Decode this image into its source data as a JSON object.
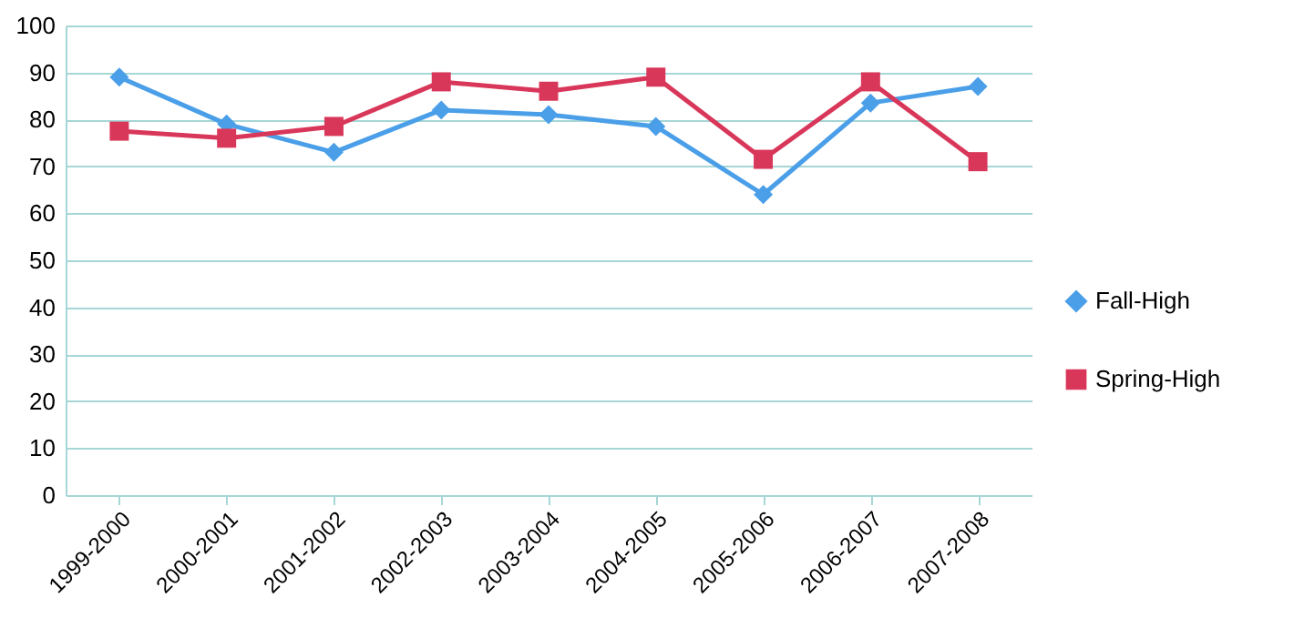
{
  "chart_data": {
    "type": "line",
    "categories": [
      "1999-2000",
      "2000-2001",
      "2001-2002",
      "2002-2003",
      "2003-2004",
      "2004-2005",
      "2005-2006",
      "2006-2007",
      "2007-2008"
    ],
    "series": [
      {
        "name": "Fall-High",
        "color": "#4a9fe8",
        "marker": "diamond",
        "values": [
          89,
          79,
          73,
          82,
          81,
          78.5,
          64,
          83.5,
          87
        ]
      },
      {
        "name": "Spring-High",
        "color": "#d9375a",
        "marker": "square",
        "values": [
          77.5,
          76,
          78.5,
          88,
          86,
          89,
          71.5,
          88,
          71
        ]
      }
    ],
    "ylim": [
      0,
      100
    ],
    "yticks": [
      0,
      10,
      20,
      30,
      40,
      50,
      60,
      70,
      80,
      90,
      100
    ],
    "grid": "y",
    "legend": "right"
  }
}
